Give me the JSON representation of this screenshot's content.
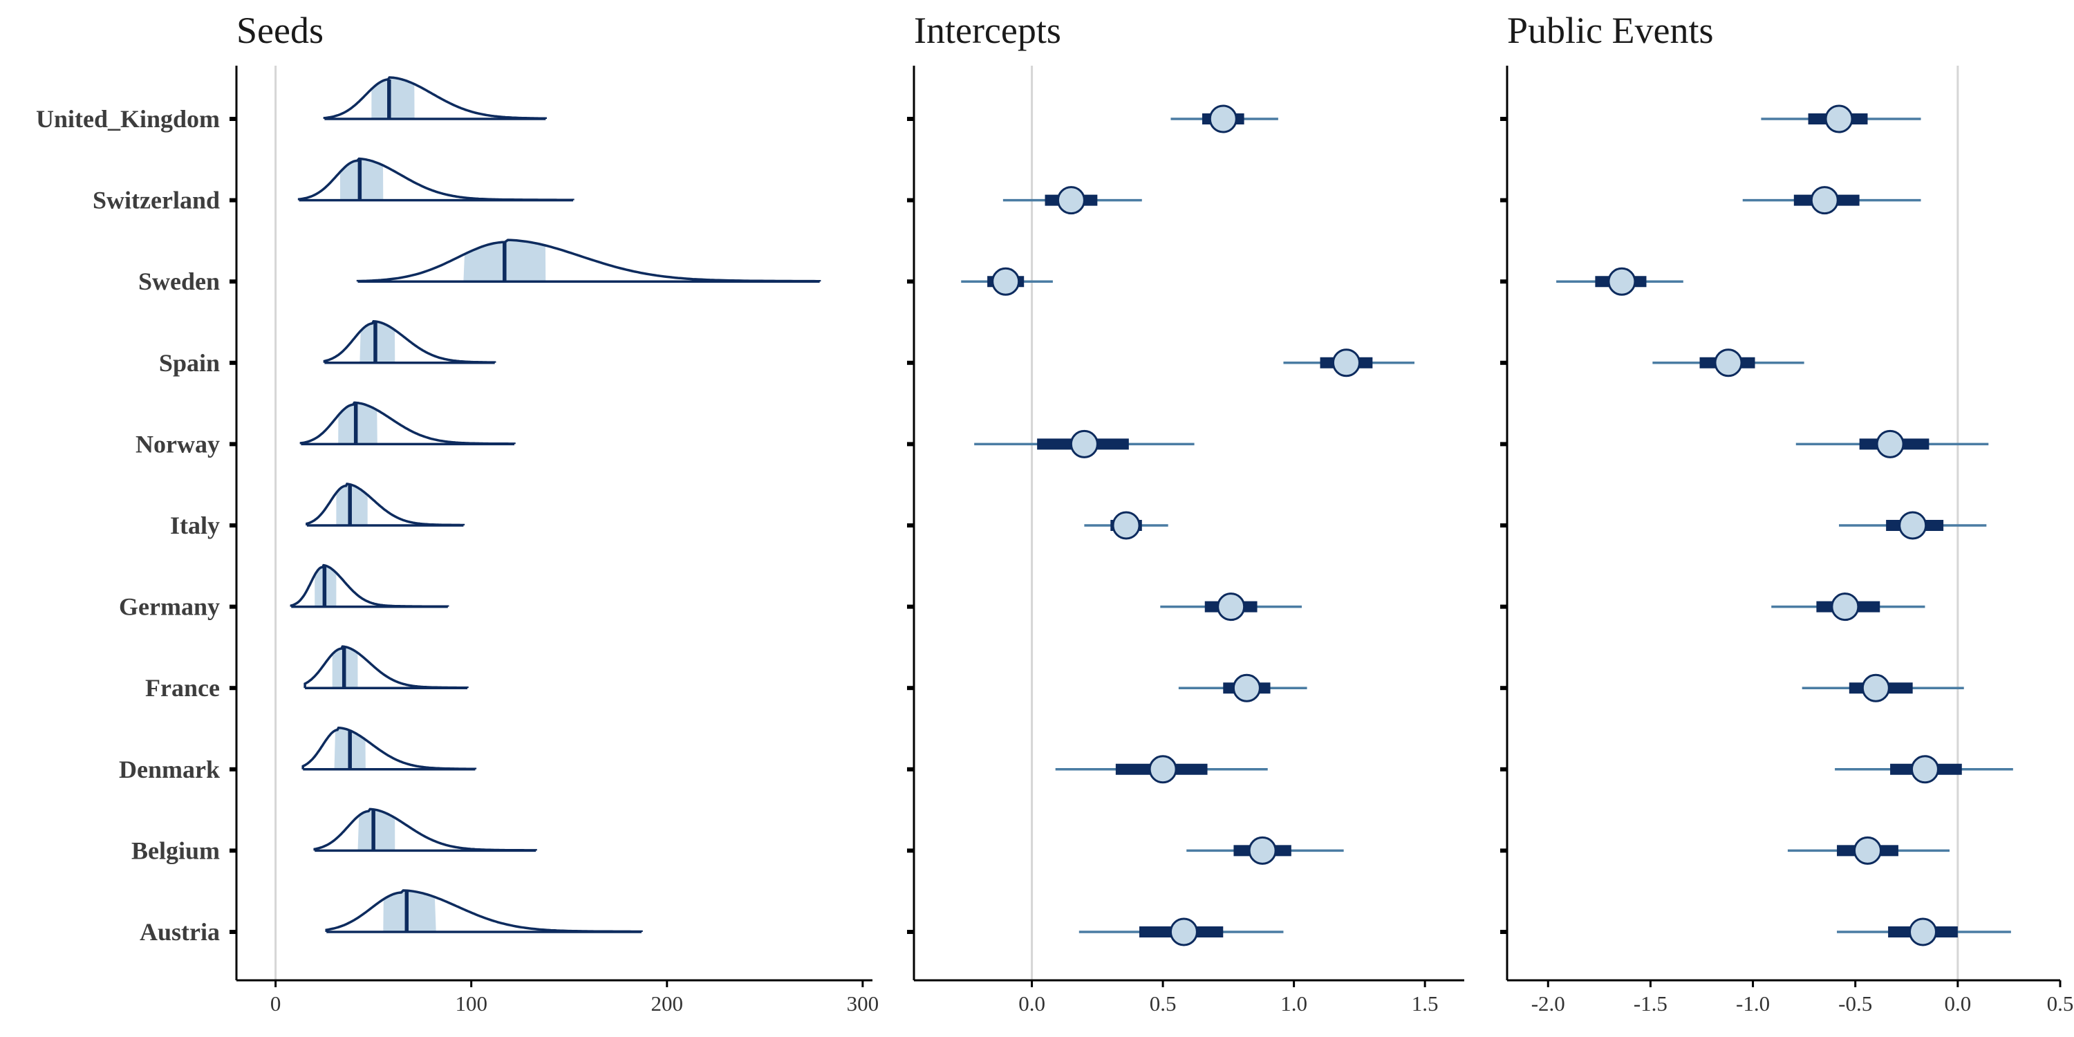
{
  "colors": {
    "dark": "#0d2b5e",
    "light_fill": "#c5d9e8",
    "whisker": "#4a7ca3",
    "zero_line": "#d6d6d6",
    "axis": "#000000"
  },
  "chart_data": [
    {
      "type": "density-ridgeline",
      "title": "Seeds",
      "xlim": [
        -20,
        305
      ],
      "xticks": [
        0,
        100,
        200,
        300
      ],
      "xtick_labels": [
        "0",
        "100",
        "200",
        "300"
      ],
      "reference_line": 0,
      "categories": [
        "United_Kingdom",
        "Switzerland",
        "Sweden",
        "Spain",
        "Norway",
        "Italy",
        "Germany",
        "France",
        "Denmark",
        "Belgium",
        "Austria"
      ],
      "series": [
        {
          "category": "United_Kingdom",
          "min": 25,
          "max": 138,
          "mode": 58,
          "sd_left": 12,
          "sd_right": 22,
          "median": 58,
          "band": [
            49,
            71
          ]
        },
        {
          "category": "Switzerland",
          "min": 12,
          "max": 152,
          "mode": 42,
          "sd_left": 11,
          "sd_right": 22,
          "median": 43,
          "band": [
            33,
            55
          ]
        },
        {
          "category": "Sweden",
          "min": 42,
          "max": 278,
          "mode": 118,
          "sd_left": 25,
          "sd_right": 38,
          "median": 117,
          "band": [
            96,
            138
          ]
        },
        {
          "category": "Spain",
          "min": 25,
          "max": 112,
          "mode": 50,
          "sd_left": 10,
          "sd_right": 16,
          "median": 51,
          "band": [
            43,
            61
          ]
        },
        {
          "category": "Norway",
          "min": 13,
          "max": 122,
          "mode": 40,
          "sd_left": 10,
          "sd_right": 19,
          "median": 41,
          "band": [
            32,
            52
          ]
        },
        {
          "category": "Italy",
          "min": 16,
          "max": 96,
          "mode": 36,
          "sd_left": 8,
          "sd_right": 14,
          "median": 38,
          "band": [
            31,
            47
          ]
        },
        {
          "category": "Germany",
          "min": 8,
          "max": 88,
          "mode": 24,
          "sd_left": 6,
          "sd_right": 11,
          "median": 25,
          "band": [
            20,
            31
          ]
        },
        {
          "category": "France",
          "min": 15,
          "max": 98,
          "mode": 34,
          "sd_left": 9,
          "sd_right": 14,
          "median": 35,
          "band": [
            29,
            42
          ]
        },
        {
          "category": "Denmark",
          "min": 14,
          "max": 102,
          "mode": 32,
          "sd_left": 8,
          "sd_right": 17,
          "median": 38,
          "band": [
            30,
            46
          ]
        },
        {
          "category": "Belgium",
          "min": 20,
          "max": 133,
          "mode": 48,
          "sd_left": 11,
          "sd_right": 19,
          "median": 50,
          "band": [
            42,
            61
          ]
        },
        {
          "category": "Austria",
          "min": 26,
          "max": 187,
          "mode": 65,
          "sd_left": 16,
          "sd_right": 28,
          "median": 67,
          "band": [
            55,
            82
          ]
        }
      ]
    },
    {
      "type": "pointrange",
      "title": "Intercepts",
      "xlim": [
        -0.45,
        1.65
      ],
      "xticks": [
        0.0,
        0.5,
        1.0,
        1.5
      ],
      "xtick_labels": [
        "0.0",
        "0.5",
        "1.0",
        "1.5"
      ],
      "reference_line": 0,
      "categories": [
        "United_Kingdom",
        "Switzerland",
        "Sweden",
        "Spain",
        "Norway",
        "Italy",
        "Germany",
        "France",
        "Denmark",
        "Belgium",
        "Austria"
      ],
      "series": [
        {
          "category": "United_Kingdom",
          "estimate": 0.73,
          "inner": [
            0.65,
            0.81
          ],
          "outer": [
            0.53,
            0.94
          ]
        },
        {
          "category": "Switzerland",
          "estimate": 0.15,
          "inner": [
            0.05,
            0.25
          ],
          "outer": [
            -0.11,
            0.42
          ]
        },
        {
          "category": "Sweden",
          "estimate": -0.1,
          "inner": [
            -0.17,
            -0.03
          ],
          "outer": [
            -0.27,
            0.08
          ]
        },
        {
          "category": "Spain",
          "estimate": 1.2,
          "inner": [
            1.1,
            1.3
          ],
          "outer": [
            0.96,
            1.46
          ]
        },
        {
          "category": "Norway",
          "estimate": 0.2,
          "inner": [
            0.02,
            0.37
          ],
          "outer": [
            -0.22,
            0.62
          ]
        },
        {
          "category": "Italy",
          "estimate": 0.36,
          "inner": [
            0.3,
            0.42
          ],
          "outer": [
            0.2,
            0.52
          ]
        },
        {
          "category": "Germany",
          "estimate": 0.76,
          "inner": [
            0.66,
            0.86
          ],
          "outer": [
            0.49,
            1.03
          ]
        },
        {
          "category": "France",
          "estimate": 0.82,
          "inner": [
            0.73,
            0.91
          ],
          "outer": [
            0.56,
            1.05
          ]
        },
        {
          "category": "Denmark",
          "estimate": 0.5,
          "inner": [
            0.32,
            0.67
          ],
          "outer": [
            0.09,
            0.9
          ]
        },
        {
          "category": "Belgium",
          "estimate": 0.88,
          "inner": [
            0.77,
            0.99
          ],
          "outer": [
            0.59,
            1.19
          ]
        },
        {
          "category": "Austria",
          "estimate": 0.58,
          "inner": [
            0.41,
            0.73
          ],
          "outer": [
            0.18,
            0.96
          ]
        }
      ]
    },
    {
      "type": "pointrange",
      "title": "Public Events",
      "xlim": [
        -2.2,
        0.5
      ],
      "xticks": [
        -2.0,
        -1.5,
        -1.0,
        -0.5,
        0.0,
        0.5
      ],
      "xtick_labels": [
        "-2.0",
        "-1.5",
        "-1.0",
        "-0.5",
        "0.0",
        "0.5"
      ],
      "reference_line": 0,
      "categories": [
        "United_Kingdom",
        "Switzerland",
        "Sweden",
        "Spain",
        "Norway",
        "Italy",
        "Germany",
        "France",
        "Denmark",
        "Belgium",
        "Austria"
      ],
      "series": [
        {
          "category": "United_Kingdom",
          "estimate": -0.58,
          "inner": [
            -0.73,
            -0.44
          ],
          "outer": [
            -0.96,
            -0.18
          ]
        },
        {
          "category": "Switzerland",
          "estimate": -0.65,
          "inner": [
            -0.8,
            -0.48
          ],
          "outer": [
            -1.05,
            -0.18
          ]
        },
        {
          "category": "Sweden",
          "estimate": -1.64,
          "inner": [
            -1.77,
            -1.52
          ],
          "outer": [
            -1.96,
            -1.34
          ]
        },
        {
          "category": "Spain",
          "estimate": -1.12,
          "inner": [
            -1.26,
            -0.99
          ],
          "outer": [
            -1.49,
            -0.75
          ]
        },
        {
          "category": "Norway",
          "estimate": -0.33,
          "inner": [
            -0.48,
            -0.14
          ],
          "outer": [
            -0.79,
            0.15
          ]
        },
        {
          "category": "Italy",
          "estimate": -0.22,
          "inner": [
            -0.35,
            -0.07
          ],
          "outer": [
            -0.58,
            0.14
          ]
        },
        {
          "category": "Germany",
          "estimate": -0.55,
          "inner": [
            -0.69,
            -0.38
          ],
          "outer": [
            -0.91,
            -0.16
          ]
        },
        {
          "category": "France",
          "estimate": -0.4,
          "inner": [
            -0.53,
            -0.22
          ],
          "outer": [
            -0.76,
            0.03
          ]
        },
        {
          "category": "Denmark",
          "estimate": -0.16,
          "inner": [
            -0.33,
            0.02
          ],
          "outer": [
            -0.6,
            0.27
          ]
        },
        {
          "category": "Belgium",
          "estimate": -0.44,
          "inner": [
            -0.59,
            -0.29
          ],
          "outer": [
            -0.83,
            -0.04
          ]
        },
        {
          "category": "Austria",
          "estimate": -0.17,
          "inner": [
            -0.34,
            0.0
          ],
          "outer": [
            -0.59,
            0.26
          ]
        }
      ]
    }
  ]
}
